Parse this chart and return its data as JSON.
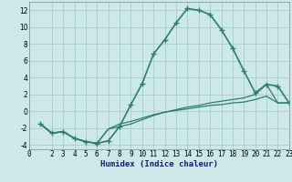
{
  "title": "",
  "xlabel": "Humidex (Indice chaleur)",
  "ylabel": "",
  "bg_color": "#cce8e8",
  "grid_color": "#aacccc",
  "line_color": "#2e7d6e",
  "xlim": [
    0,
    23
  ],
  "ylim": [
    -4.5,
    13
  ],
  "xticks": [
    0,
    2,
    3,
    4,
    5,
    6,
    7,
    8,
    9,
    10,
    11,
    12,
    13,
    14,
    15,
    16,
    17,
    18,
    19,
    20,
    21,
    22,
    23
  ],
  "yticks": [
    -4,
    -2,
    0,
    2,
    4,
    6,
    8,
    10,
    12
  ],
  "series": [
    {
      "x": [
        1,
        2,
        3,
        4,
        5,
        6,
        7,
        8,
        9,
        10,
        11,
        12,
        13,
        14,
        15,
        16,
        17,
        18,
        19,
        20,
        21,
        22,
        23
      ],
      "y": [
        -1.5,
        -2.6,
        -2.4,
        -3.2,
        -3.6,
        -3.8,
        -3.5,
        -1.8,
        0.8,
        3.3,
        6.8,
        8.5,
        10.5,
        12.2,
        12.0,
        11.5,
        9.7,
        7.5,
        4.8,
        2.2,
        3.2,
        3.0,
        1.0
      ],
      "marker": "+",
      "linewidth": 1.2,
      "markersize": 4
    },
    {
      "x": [
        1,
        2,
        3,
        4,
        5,
        6,
        7,
        8,
        9,
        10,
        11,
        12,
        13,
        14,
        15,
        16,
        17,
        18,
        19,
        20,
        21,
        22,
        23
      ],
      "y": [
        -1.5,
        -2.6,
        -2.4,
        -3.2,
        -3.6,
        -3.8,
        -2.1,
        -1.8,
        -1.5,
        -1.0,
        -0.5,
        -0.1,
        0.2,
        0.5,
        0.7,
        1.0,
        1.2,
        1.4,
        1.6,
        2.0,
        3.2,
        1.0,
        1.0
      ],
      "marker": null,
      "linewidth": 0.9,
      "markersize": 0
    },
    {
      "x": [
        1,
        2,
        3,
        4,
        5,
        6,
        7,
        8,
        9,
        10,
        11,
        12,
        13,
        14,
        15,
        16,
        17,
        18,
        19,
        20,
        21,
        22,
        23
      ],
      "y": [
        -1.5,
        -2.6,
        -2.4,
        -3.2,
        -3.6,
        -3.8,
        -2.1,
        -1.5,
        -1.2,
        -0.8,
        -0.4,
        -0.1,
        0.1,
        0.3,
        0.5,
        0.7,
        0.8,
        1.0,
        1.1,
        1.4,
        1.8,
        1.0,
        1.0
      ],
      "marker": null,
      "linewidth": 0.9,
      "markersize": 0
    }
  ]
}
